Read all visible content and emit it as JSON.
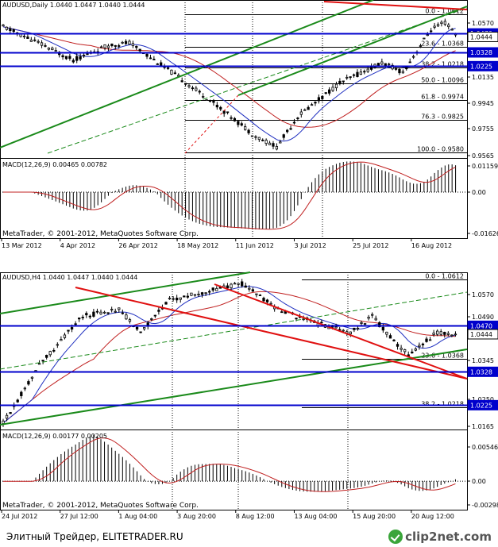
{
  "colors": {
    "grid": "#000000",
    "candle": "#000000",
    "blue": "#0000cc",
    "ma_blue": "#2030c0",
    "ma_red": "#c02020",
    "green": "#1a8a1a",
    "red": "#e01010",
    "price_tag": "#0000cc",
    "last_tag_bg": "#ffffff"
  },
  "chart_data": [
    {
      "type": "candlestick",
      "title": "AUDUSD,Daily",
      "ohlc_text": "1.0440 1.0447 1.0440 1.0444",
      "y_ticks": [
        "1.0570",
        "1.0135",
        "0.9945",
        "0.9755",
        "0.9565"
      ],
      "ylim": [
        0.9538,
        1.072
      ],
      "x_labels": [
        "13 Mar 2012",
        "4 Apr 2012",
        "26 Apr 2012",
        "18 May 2012",
        "11 Jun 2012",
        "3 Jul 2012",
        "25 Jul 2012",
        "16 Aug 2012"
      ],
      "price_tags": [
        {
          "text": "1.0470",
          "value": 1.047,
          "kind": "blue"
        },
        {
          "text": "1.0444",
          "value": 1.0444,
          "kind": "last"
        },
        {
          "text": "1.0328",
          "value": 1.0328,
          "kind": "blue"
        },
        {
          "text": "1.0225",
          "value": 1.0225,
          "kind": "blue"
        }
      ],
      "fibo": [
        {
          "label": "0.0 - 1.0612",
          "value": 1.0612
        },
        {
          "label": "23.6 - 1.0368",
          "value": 1.0368
        },
        {
          "label": "38.2 - 1.0218",
          "value": 1.0218
        },
        {
          "label": "50.0 - 1.0096",
          "value": 1.0096
        },
        {
          "label": "61.8 - 0.9974",
          "value": 0.9974
        },
        {
          "label": "76.3 - 0.9825",
          "value": 0.9825
        },
        {
          "label": "100.0 - 0.9580",
          "value": 0.958
        }
      ],
      "macd": {
        "title": "MACD(12,26,9) 0.00465 0.00782",
        "y_ticks": [
          "0.01159",
          "0.00",
          "-0.01626"
        ],
        "ylim": [
          -0.0175,
          0.013
        ]
      },
      "copyright": "MetaTrader, © 2001-2012, MetaQuotes Software Corp."
    },
    {
      "type": "candlestick",
      "title": "AUDUSD,H4",
      "ohlc_text": "1.0440 1.0447 1.0440 1.0444",
      "y_ticks": [
        "1.0570",
        "1.0490",
        "1.0345",
        "1.0250",
        "1.0165"
      ],
      "ylim": [
        1.015,
        1.0635
      ],
      "x_labels": [
        "24 Jul 2012",
        "27 Jul 12:00",
        "1 Aug 04:00",
        "3 Aug 20:00",
        "8 Aug 12:00",
        "13 Aug 04:00",
        "15 Aug 20:00",
        "20 Aug 12:00"
      ],
      "price_tags": [
        {
          "text": "1.0470",
          "value": 1.047,
          "kind": "blue"
        },
        {
          "text": "1.0444",
          "value": 1.0444,
          "kind": "last"
        },
        {
          "text": "1.0328",
          "value": 1.0328,
          "kind": "blue"
        },
        {
          "text": "1.0225",
          "value": 1.0225,
          "kind": "blue"
        }
      ],
      "fibo": [
        {
          "label": "0.0 - 1.0612",
          "value": 1.0612
        },
        {
          "label": "23.6 - 1.0368",
          "value": 1.0368
        },
        {
          "label": "38.2 - 1.0218",
          "value": 1.0218
        }
      ],
      "macd": {
        "title": "MACD(12,26,9) 0.00177 0.00205",
        "y_ticks": [
          "0.00546",
          "0.00",
          "-0.00298"
        ],
        "ylim": [
          -0.0033,
          0.006
        ]
      },
      "copyright": "MetaTrader, © 2001-2012, MetaQuotes Software Corp."
    }
  ],
  "footer": {
    "caption": "Элитный Трейдер, ELITETRADER.RU",
    "logo": "clip2net.com"
  }
}
